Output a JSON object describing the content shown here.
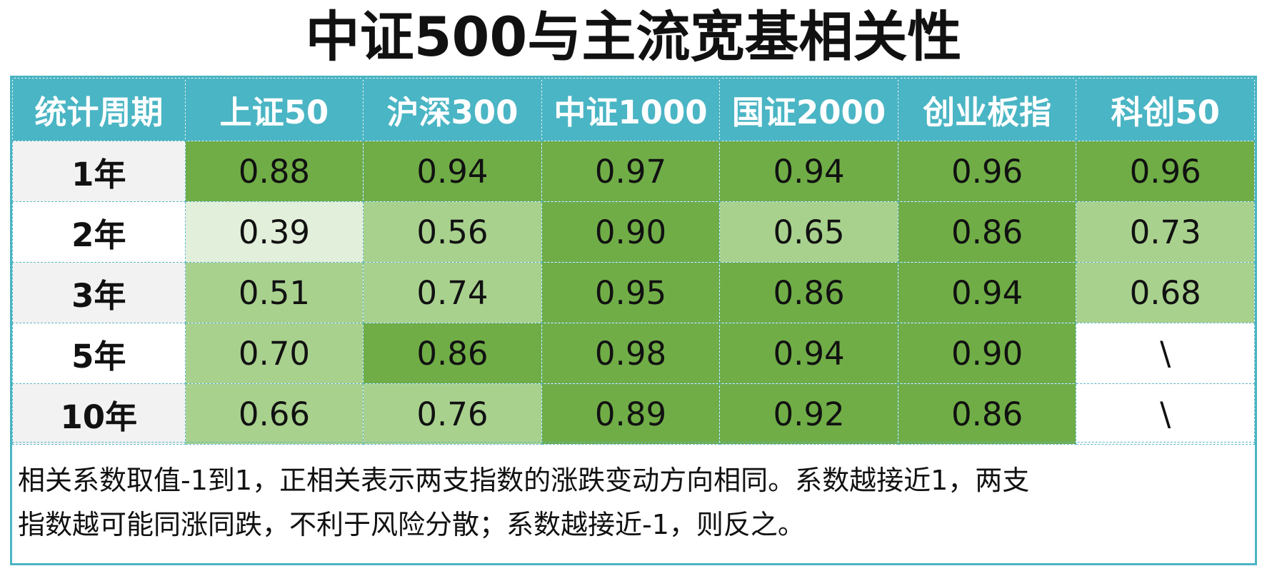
{
  "title": "中证500与主流宽基相关性",
  "chart_data": {
    "type": "table",
    "columns": [
      "统计周期",
      "上证50",
      "沪深300",
      "中证1000",
      "国证2000",
      "创业板指",
      "科创50"
    ],
    "rows": [
      {
        "period": "1年",
        "values": [
          "0.88",
          "0.94",
          "0.97",
          "0.94",
          "0.96",
          "0.96"
        ]
      },
      {
        "period": "2年",
        "values": [
          "0.39",
          "0.56",
          "0.90",
          "0.65",
          "0.86",
          "0.73"
        ]
      },
      {
        "period": "3年",
        "values": [
          "0.51",
          "0.74",
          "0.95",
          "0.86",
          "0.94",
          "0.68"
        ]
      },
      {
        "period": "5年",
        "values": [
          "0.70",
          "0.86",
          "0.98",
          "0.94",
          "0.90",
          "\\"
        ]
      },
      {
        "period": "10年",
        "values": [
          "0.66",
          "0.76",
          "0.89",
          "0.92",
          "0.86",
          "\\"
        ]
      }
    ]
  },
  "note": {
    "line1": "相关系数取值-1到1，正相关表示两支指数的涨跌变动方向相同。系数越接近1，两支",
    "line2": "指数越可能同涨同跌，不利于风险分散；系数越接近-1，则反之。"
  },
  "colors": {
    "header": "#4ab5c4",
    "strong": "#70ad47",
    "medium": "#a9d18e",
    "light": "#e2efda",
    "empty": "#ffffff",
    "period_shaded": "#f2f2f2",
    "period_plain": "#ffffff"
  }
}
